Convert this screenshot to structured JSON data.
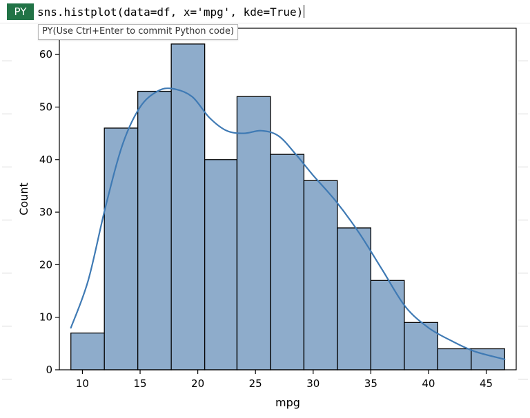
{
  "formula_bar": {
    "badge": "PY",
    "code": "sns.histplot(data=df, x='mpg', kde=True)",
    "hint": "PY(Use Ctrl+Enter to commit Python code)"
  },
  "colors": {
    "bar_fill": "#8eaccb",
    "bar_edge": "#000000",
    "kde_line": "#3f7ab4",
    "badge_bg": "#217346"
  },
  "chart_data": {
    "type": "bar",
    "subtype": "histogram_with_kde",
    "xlabel": "mpg",
    "ylabel": "Count",
    "xlim": [
      8.0,
      47.6
    ],
    "ylim": [
      0,
      65
    ],
    "x_ticks": [
      10,
      15,
      20,
      25,
      30,
      35,
      40,
      45
    ],
    "y_ticks": [
      0,
      10,
      20,
      30,
      40,
      50,
      60
    ],
    "bins": [
      {
        "start": 9.0,
        "end": 11.9,
        "count": 7
      },
      {
        "start": 11.9,
        "end": 14.8,
        "count": 46
      },
      {
        "start": 14.8,
        "end": 17.7,
        "count": 53
      },
      {
        "start": 17.7,
        "end": 20.6,
        "count": 62
      },
      {
        "start": 20.6,
        "end": 23.4,
        "count": 40
      },
      {
        "start": 23.4,
        "end": 26.3,
        "count": 52
      },
      {
        "start": 26.3,
        "end": 29.2,
        "count": 41
      },
      {
        "start": 29.2,
        "end": 32.1,
        "count": 36
      },
      {
        "start": 32.1,
        "end": 35.0,
        "count": 27
      },
      {
        "start": 35.0,
        "end": 37.9,
        "count": 17
      },
      {
        "start": 37.9,
        "end": 40.8,
        "count": 9
      },
      {
        "start": 40.8,
        "end": 43.7,
        "count": 4
      },
      {
        "start": 43.7,
        "end": 46.6,
        "count": 4
      }
    ],
    "kde": {
      "x": [
        9.0,
        10.5,
        12.0,
        13.5,
        15.0,
        16.5,
        17.8,
        19.5,
        21.0,
        22.5,
        24.0,
        25.5,
        27.0,
        28.5,
        30.0,
        32.0,
        34.0,
        36.0,
        38.0,
        40.0,
        42.0,
        44.0,
        46.6
      ],
      "y": [
        8,
        17,
        31,
        43,
        50,
        53,
        53.5,
        52,
        48,
        45.5,
        45,
        45.5,
        44.5,
        41,
        37,
        32,
        26,
        19,
        12,
        8,
        5.5,
        3.5,
        2
      ]
    },
    "grid": false,
    "legend": "none"
  }
}
